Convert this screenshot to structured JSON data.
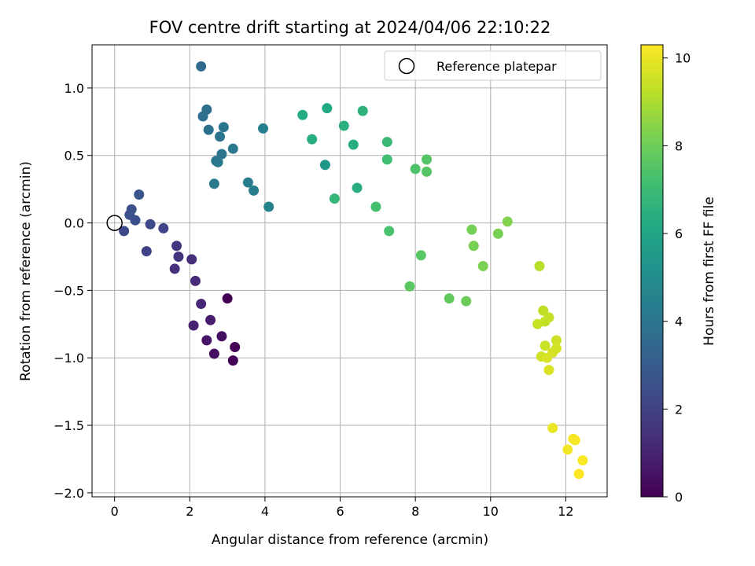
{
  "chart_data": {
    "type": "scatter",
    "title": "FOV centre drift starting at 2024/04/06 22:10:22",
    "xlabel": "Angular distance from reference (arcmin)",
    "ylabel": "Rotation from reference (arcmin)",
    "xlim": [
      -0.6,
      13.1
    ],
    "ylim": [
      -2.03,
      1.32
    ],
    "xticks": [
      0,
      2,
      4,
      6,
      8,
      10,
      12
    ],
    "yticks": [
      1.0,
      0.5,
      0.0,
      -0.5,
      -1.0,
      -1.5,
      -2.0
    ],
    "ytick_labels": [
      "1.0",
      "0.5",
      "0.0",
      "−0.5",
      "−1.0",
      "−1.5",
      "−2.0"
    ],
    "grid": true,
    "legend": {
      "placement": "top-right",
      "entries": [
        {
          "label": "Reference platepar",
          "marker": "open-circle"
        }
      ]
    },
    "reference_point": {
      "x": 0,
      "y": 0
    },
    "colorbar": {
      "label": "Hours from first FF file",
      "colormap": "viridis",
      "range": [
        0,
        10.3
      ],
      "ticks": [
        0,
        2,
        4,
        6,
        8,
        10
      ]
    },
    "points": [
      {
        "x": 3.0,
        "y": -0.56,
        "c": 0.0
      },
      {
        "x": 3.15,
        "y": -1.02,
        "c": 0.05
      },
      {
        "x": 3.2,
        "y": -0.92,
        "c": 0.1
      },
      {
        "x": 2.65,
        "y": -0.97,
        "c": 0.35
      },
      {
        "x": 2.85,
        "y": -0.84,
        "c": 0.45
      },
      {
        "x": 2.45,
        "y": -0.87,
        "c": 0.6
      },
      {
        "x": 2.55,
        "y": -0.72,
        "c": 0.8
      },
      {
        "x": 2.1,
        "y": -0.76,
        "c": 0.95
      },
      {
        "x": 2.3,
        "y": -0.6,
        "c": 1.1
      },
      {
        "x": 2.15,
        "y": -0.43,
        "c": 1.25
      },
      {
        "x": 2.05,
        "y": -0.27,
        "c": 1.35
      },
      {
        "x": 1.6,
        "y": -0.34,
        "c": 1.45
      },
      {
        "x": 1.7,
        "y": -0.25,
        "c": 1.55
      },
      {
        "x": 1.65,
        "y": -0.17,
        "c": 1.65
      },
      {
        "x": 0.85,
        "y": -0.21,
        "c": 2.0
      },
      {
        "x": 1.3,
        "y": -0.04,
        "c": 2.1
      },
      {
        "x": 0.95,
        "y": -0.01,
        "c": 2.2
      },
      {
        "x": 0.25,
        "y": -0.06,
        "c": 2.3
      },
      {
        "x": 0.55,
        "y": 0.02,
        "c": 2.45
      },
      {
        "x": 0.45,
        "y": 0.1,
        "c": 2.5
      },
      {
        "x": 0.4,
        "y": 0.06,
        "c": 2.55
      },
      {
        "x": 0.65,
        "y": 0.21,
        "c": 2.7
      },
      {
        "x": 2.3,
        "y": 1.16,
        "c": 3.6
      },
      {
        "x": 2.35,
        "y": 0.79,
        "c": 3.7
      },
      {
        "x": 2.45,
        "y": 0.84,
        "c": 3.75
      },
      {
        "x": 2.5,
        "y": 0.69,
        "c": 3.8
      },
      {
        "x": 2.9,
        "y": 0.71,
        "c": 3.9
      },
      {
        "x": 2.8,
        "y": 0.64,
        "c": 3.95
      },
      {
        "x": 2.85,
        "y": 0.51,
        "c": 4.0
      },
      {
        "x": 2.7,
        "y": 0.46,
        "c": 4.05
      },
      {
        "x": 2.75,
        "y": 0.45,
        "c": 4.1
      },
      {
        "x": 3.15,
        "y": 0.55,
        "c": 4.15
      },
      {
        "x": 2.65,
        "y": 0.29,
        "c": 4.2
      },
      {
        "x": 3.55,
        "y": 0.3,
        "c": 4.3
      },
      {
        "x": 3.7,
        "y": 0.24,
        "c": 4.35
      },
      {
        "x": 3.95,
        "y": 0.7,
        "c": 4.45
      },
      {
        "x": 4.1,
        "y": 0.12,
        "c": 4.55
      },
      {
        "x": 5.0,
        "y": 0.8,
        "c": 6.3
      },
      {
        "x": 5.25,
        "y": 0.62,
        "c": 6.35
      },
      {
        "x": 5.65,
        "y": 0.85,
        "c": 6.2
      },
      {
        "x": 5.6,
        "y": 0.43,
        "c": 5.4
      },
      {
        "x": 6.1,
        "y": 0.72,
        "c": 6.5
      },
      {
        "x": 6.35,
        "y": 0.58,
        "c": 6.45
      },
      {
        "x": 6.6,
        "y": 0.83,
        "c": 6.6
      },
      {
        "x": 5.85,
        "y": 0.18,
        "c": 6.8
      },
      {
        "x": 6.45,
        "y": 0.26,
        "c": 6.4
      },
      {
        "x": 7.25,
        "y": 0.6,
        "c": 6.9
      },
      {
        "x": 7.25,
        "y": 0.47,
        "c": 7.1
      },
      {
        "x": 6.95,
        "y": 0.12,
        "c": 7.2
      },
      {
        "x": 7.3,
        "y": -0.06,
        "c": 7.3
      },
      {
        "x": 8.0,
        "y": 0.4,
        "c": 7.4
      },
      {
        "x": 8.3,
        "y": 0.47,
        "c": 7.5
      },
      {
        "x": 8.3,
        "y": 0.38,
        "c": 7.55
      },
      {
        "x": 8.15,
        "y": -0.24,
        "c": 7.6
      },
      {
        "x": 7.85,
        "y": -0.47,
        "c": 7.65
      },
      {
        "x": 8.9,
        "y": -0.56,
        "c": 7.8
      },
      {
        "x": 9.35,
        "y": -0.58,
        "c": 7.95
      },
      {
        "x": 9.5,
        "y": -0.05,
        "c": 8.1
      },
      {
        "x": 9.55,
        "y": -0.17,
        "c": 8.2
      },
      {
        "x": 9.8,
        "y": -0.32,
        "c": 8.25
      },
      {
        "x": 10.2,
        "y": -0.08,
        "c": 8.2
      },
      {
        "x": 10.45,
        "y": 0.01,
        "c": 8.35
      },
      {
        "x": 11.3,
        "y": -0.32,
        "c": 9.2
      },
      {
        "x": 11.4,
        "y": -0.65,
        "c": 9.3
      },
      {
        "x": 11.45,
        "y": -0.73,
        "c": 9.35
      },
      {
        "x": 11.55,
        "y": -0.7,
        "c": 9.4
      },
      {
        "x": 11.25,
        "y": -0.75,
        "c": 9.45
      },
      {
        "x": 11.75,
        "y": -0.87,
        "c": 9.55
      },
      {
        "x": 11.45,
        "y": -0.91,
        "c": 9.5
      },
      {
        "x": 11.75,
        "y": -0.93,
        "c": 9.6
      },
      {
        "x": 11.65,
        "y": -0.96,
        "c": 9.65
      },
      {
        "x": 11.35,
        "y": -0.99,
        "c": 9.55
      },
      {
        "x": 11.5,
        "y": -1.0,
        "c": 9.7
      },
      {
        "x": 11.55,
        "y": -1.09,
        "c": 9.75
      },
      {
        "x": 11.65,
        "y": -1.52,
        "c": 10.0
      },
      {
        "x": 12.05,
        "y": -1.68,
        "c": 10.1
      },
      {
        "x": 12.2,
        "y": -1.6,
        "c": 10.15
      },
      {
        "x": 12.25,
        "y": -1.61,
        "c": 10.2
      },
      {
        "x": 12.45,
        "y": -1.76,
        "c": 10.25
      },
      {
        "x": 12.35,
        "y": -1.86,
        "c": 10.3
      }
    ]
  }
}
